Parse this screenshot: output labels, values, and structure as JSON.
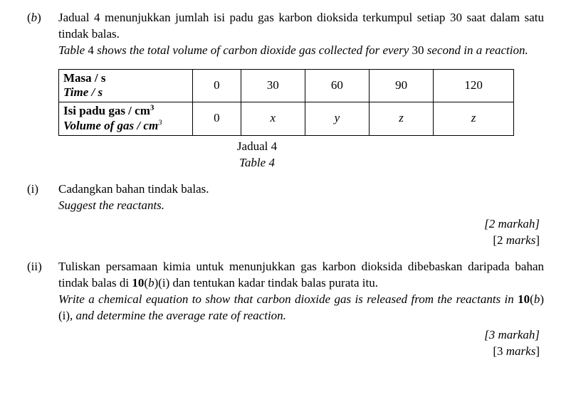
{
  "part_label": "(b)",
  "intro_ms": "Jadual 4 menunjukkan jumlah isi padu gas karbon dioksida terkumpul setiap 30 saat dalam satu tindak balas.",
  "intro_en_1": "Table",
  "intro_en_2": " 4 ",
  "intro_en_3": "shows the total volume of carbon dioxide gas collected for every",
  "intro_en_4": " 30 ",
  "intro_en_5": "second in a reaction.",
  "table": {
    "row1_ms": "Masa / s",
    "row1_en": "Time / s",
    "row2_ms_a": "Isi padu gas / cm",
    "row2_ms_sup": "3",
    "row2_en_a": "Volume of gas / cm",
    "row2_en_sup": "3",
    "h": [
      "0",
      "30",
      "60",
      "90",
      "120"
    ],
    "v": [
      "0",
      "x",
      "y",
      "z",
      "z"
    ]
  },
  "caption_ms": "Jadual 4",
  "caption_en": "Table 4",
  "qi_label": "(i)",
  "qi_ms": "Cadangkan bahan tindak balas.",
  "qi_en": "Suggest the reactants.",
  "qi_marks_ms": "[2 markah]",
  "qi_marks_en": "[2 marks]",
  "qii_label": "(ii)",
  "qii_ms_1": "Tuliskan persamaan kimia untuk menunjukkan gas karbon dioksida dibebaskan daripada bahan tindak balas di ",
  "qii_ms_2": "10",
  "qii_ms_3": "(b)",
  "qii_ms_4": "(i) dan tentukan kadar tindak balas purata itu.",
  "qii_en_1": "Write a chemical equation to show that carbon dioxide gas is released from the reactants in ",
  "qii_en_2": "10",
  "qii_en_3": "(b)",
  "qii_en_4": "(i)",
  "qii_en_5": ", and determine the average rate of reaction.",
  "qii_marks_ms": "[3 markah]",
  "qii_marks_en": "[3 marks]"
}
